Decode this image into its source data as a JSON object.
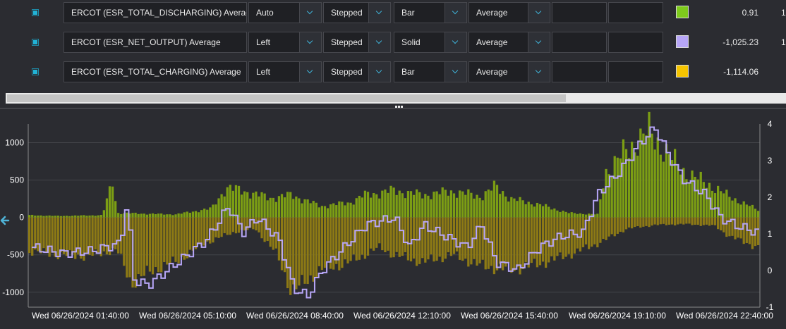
{
  "series_rows": [
    {
      "name": "ERCOT (ESR_TOTAL_DISCHARGING) Average",
      "axis": "Auto",
      "interp": "Stepped",
      "style": "Bar",
      "agg": "Average",
      "color": "#7ecb1c",
      "value": "0.91",
      "extra": "1"
    },
    {
      "name": "ERCOT (ESR_NET_OUTPUT) Average",
      "axis": "Left",
      "interp": "Stepped",
      "style": "Solid",
      "agg": "Average",
      "color": "#b7a6f7",
      "value": "-1,025.23",
      "extra": "1"
    },
    {
      "name": "ERCOT (ESR_TOTAL_CHARGING) Average",
      "axis": "Left",
      "interp": "Stepped",
      "style": "Bar",
      "agg": "Average",
      "color": "#f5c400",
      "value": "-1,114.06",
      "extra": ""
    }
  ],
  "chart_data": {
    "type": "bar",
    "y_left": {
      "ticks": [
        "1000",
        "500",
        "0",
        "-500",
        "-1000"
      ],
      "range": [
        -1200,
        1250
      ]
    },
    "y_right": {
      "ticks": [
        "4",
        "3",
        "2",
        "1",
        "0",
        "-1"
      ],
      "range": [
        -1,
        4
      ]
    },
    "x_tick_labels": [
      "Wed 06/26/2024 01:40:00",
      "Wed 06/26/2024 05:10:00",
      "Wed 06/26/2024 08:40:00",
      "Wed 06/26/2024 12:10:00",
      "Wed 06/26/2024 15:40:00",
      "Wed 06/26/2024 19:10:00",
      "Wed 06/26/2024 22:40:00"
    ],
    "grid": true,
    "series": [
      {
        "name": "ERCOT (ESR_TOTAL_DISCHARGING) Average",
        "color": "#7c9e14",
        "keypoints": [
          [
            0,
            30
          ],
          [
            0.04,
            20
          ],
          [
            0.1,
            30
          ],
          [
            0.115,
            500
          ],
          [
            0.12,
            60
          ],
          [
            0.2,
            40
          ],
          [
            0.25,
            120
          ],
          [
            0.27,
            400
          ],
          [
            0.3,
            340
          ],
          [
            0.33,
            260
          ],
          [
            0.36,
            300
          ],
          [
            0.4,
            150
          ],
          [
            0.44,
            200
          ],
          [
            0.46,
            300
          ],
          [
            0.5,
            360
          ],
          [
            0.54,
            300
          ],
          [
            0.58,
            350
          ],
          [
            0.62,
            280
          ],
          [
            0.64,
            420
          ],
          [
            0.66,
            250
          ],
          [
            0.7,
            170
          ],
          [
            0.74,
            60
          ],
          [
            0.78,
            40
          ],
          [
            0.79,
            600
          ],
          [
            0.82,
            900
          ],
          [
            0.85,
            1150
          ],
          [
            0.88,
            800
          ],
          [
            0.9,
            600
          ],
          [
            0.94,
            400
          ],
          [
            0.96,
            280
          ],
          [
            1.0,
            100
          ]
        ]
      },
      {
        "name": "ERCOT (ESR_TOTAL_CHARGING) Average",
        "color": "#8d7a15",
        "keypoints": [
          [
            0,
            -450
          ],
          [
            0.04,
            -500
          ],
          [
            0.08,
            -520
          ],
          [
            0.12,
            -430
          ],
          [
            0.14,
            -880
          ],
          [
            0.17,
            -700
          ],
          [
            0.2,
            -600
          ],
          [
            0.24,
            -350
          ],
          [
            0.28,
            -200
          ],
          [
            0.31,
            -150
          ],
          [
            0.34,
            -500
          ],
          [
            0.36,
            -1000
          ],
          [
            0.4,
            -700
          ],
          [
            0.44,
            -600
          ],
          [
            0.48,
            -400
          ],
          [
            0.5,
            -500
          ],
          [
            0.54,
            -600
          ],
          [
            0.58,
            -500
          ],
          [
            0.62,
            -650
          ],
          [
            0.66,
            -700
          ],
          [
            0.7,
            -620
          ],
          [
            0.74,
            -500
          ],
          [
            0.78,
            -350
          ],
          [
            0.82,
            -150
          ],
          [
            0.86,
            -100
          ],
          [
            0.9,
            -90
          ],
          [
            0.94,
            -110
          ],
          [
            0.96,
            -250
          ],
          [
            1.0,
            -400
          ]
        ]
      },
      {
        "name": "ERCOT (ESR_NET_OUTPUT) Average",
        "color": "#b7a6f7",
        "keypoints": [
          [
            0,
            -400
          ],
          [
            0.04,
            -480
          ],
          [
            0.08,
            -450
          ],
          [
            0.12,
            -350
          ],
          [
            0.13,
            200
          ],
          [
            0.14,
            -850
          ],
          [
            0.16,
            -900
          ],
          [
            0.2,
            -600
          ],
          [
            0.24,
            -300
          ],
          [
            0.27,
            150
          ],
          [
            0.29,
            -200
          ],
          [
            0.31,
            0
          ],
          [
            0.34,
            -300
          ],
          [
            0.36,
            -950
          ],
          [
            0.38,
            -1050
          ],
          [
            0.4,
            -700
          ],
          [
            0.43,
            -400
          ],
          [
            0.46,
            -100
          ],
          [
            0.5,
            0
          ],
          [
            0.52,
            -400
          ],
          [
            0.54,
            -100
          ],
          [
            0.57,
            -250
          ],
          [
            0.6,
            -400
          ],
          [
            0.62,
            -100
          ],
          [
            0.64,
            -600
          ],
          [
            0.67,
            -700
          ],
          [
            0.7,
            -400
          ],
          [
            0.73,
            -250
          ],
          [
            0.76,
            -200
          ],
          [
            0.78,
            300
          ],
          [
            0.81,
            600
          ],
          [
            0.84,
            1000
          ],
          [
            0.86,
            1200
          ],
          [
            0.88,
            800
          ],
          [
            0.9,
            500
          ],
          [
            0.93,
            300
          ],
          [
            0.95,
            0
          ],
          [
            0.97,
            -100
          ],
          [
            1.0,
            -200
          ]
        ]
      }
    ]
  }
}
